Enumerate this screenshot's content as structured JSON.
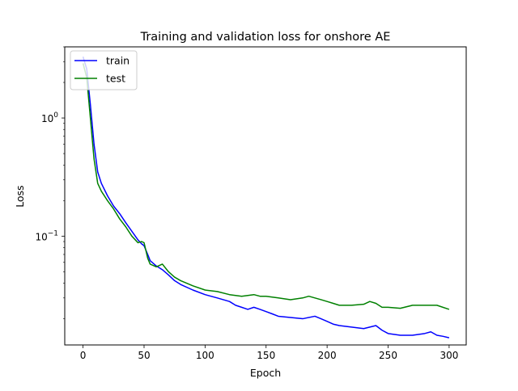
{
  "chart_data": {
    "type": "line",
    "title": "Training and validation loss for onshore AE",
    "xlabel": "Epoch",
    "ylabel": "Loss",
    "xlim": [
      -15,
      314
    ],
    "ylim": [
      0.012,
      4.0
    ],
    "yscale": "log",
    "grid": false,
    "legend_position": "top-left",
    "x_ticks": [
      0,
      50,
      100,
      150,
      200,
      250,
      300
    ],
    "x_tick_labels": [
      "0",
      "50",
      "100",
      "150",
      "200",
      "250",
      "300"
    ],
    "y_ticks": [
      1,
      0.1
    ],
    "y_tick_labels": [
      "10^0",
      "10^-1"
    ],
    "series": [
      {
        "name": "train",
        "color": "#0000ff",
        "points": [
          [
            0,
            3.3
          ],
          [
            3,
            2.6
          ],
          [
            6,
            1.3
          ],
          [
            9,
            0.6
          ],
          [
            12,
            0.35
          ],
          [
            15,
            0.28
          ],
          [
            20,
            0.22
          ],
          [
            25,
            0.18
          ],
          [
            30,
            0.155
          ],
          [
            35,
            0.13
          ],
          [
            40,
            0.11
          ],
          [
            45,
            0.093
          ],
          [
            48,
            0.086
          ],
          [
            50,
            0.083
          ],
          [
            53,
            0.07
          ],
          [
            55,
            0.062
          ],
          [
            60,
            0.056
          ],
          [
            65,
            0.052
          ],
          [
            70,
            0.047
          ],
          [
            75,
            0.042
          ],
          [
            80,
            0.039
          ],
          [
            90,
            0.035
          ],
          [
            100,
            0.032
          ],
          [
            110,
            0.03
          ],
          [
            120,
            0.028
          ],
          [
            125,
            0.026
          ],
          [
            130,
            0.025
          ],
          [
            135,
            0.024
          ],
          [
            140,
            0.025
          ],
          [
            145,
            0.024
          ],
          [
            150,
            0.023
          ],
          [
            155,
            0.022
          ],
          [
            160,
            0.021
          ],
          [
            170,
            0.0205
          ],
          [
            180,
            0.02
          ],
          [
            190,
            0.021
          ],
          [
            195,
            0.02
          ],
          [
            200,
            0.019
          ],
          [
            205,
            0.018
          ],
          [
            210,
            0.0175
          ],
          [
            220,
            0.017
          ],
          [
            230,
            0.0165
          ],
          [
            235,
            0.017
          ],
          [
            240,
            0.0175
          ],
          [
            245,
            0.016
          ],
          [
            250,
            0.015
          ],
          [
            260,
            0.0145
          ],
          [
            270,
            0.0145
          ],
          [
            280,
            0.015
          ],
          [
            285,
            0.0155
          ],
          [
            290,
            0.0145
          ],
          [
            295,
            0.0142
          ],
          [
            300,
            0.0138
          ]
        ]
      },
      {
        "name": "test",
        "color": "#008000",
        "points": [
          [
            0,
            2.9
          ],
          [
            3,
            2.2
          ],
          [
            6,
            1.0
          ],
          [
            9,
            0.45
          ],
          [
            12,
            0.28
          ],
          [
            15,
            0.24
          ],
          [
            20,
            0.2
          ],
          [
            25,
            0.17
          ],
          [
            30,
            0.14
          ],
          [
            35,
            0.12
          ],
          [
            40,
            0.1
          ],
          [
            45,
            0.088
          ],
          [
            48,
            0.09
          ],
          [
            50,
            0.088
          ],
          [
            53,
            0.065
          ],
          [
            55,
            0.058
          ],
          [
            60,
            0.055
          ],
          [
            65,
            0.058
          ],
          [
            70,
            0.05
          ],
          [
            75,
            0.045
          ],
          [
            80,
            0.042
          ],
          [
            90,
            0.038
          ],
          [
            100,
            0.035
          ],
          [
            110,
            0.034
          ],
          [
            120,
            0.032
          ],
          [
            130,
            0.031
          ],
          [
            140,
            0.032
          ],
          [
            145,
            0.031
          ],
          [
            150,
            0.031
          ],
          [
            160,
            0.03
          ],
          [
            170,
            0.029
          ],
          [
            180,
            0.03
          ],
          [
            185,
            0.031
          ],
          [
            190,
            0.03
          ],
          [
            195,
            0.029
          ],
          [
            200,
            0.028
          ],
          [
            205,
            0.027
          ],
          [
            210,
            0.026
          ],
          [
            220,
            0.026
          ],
          [
            230,
            0.0265
          ],
          [
            235,
            0.028
          ],
          [
            240,
            0.027
          ],
          [
            245,
            0.025
          ],
          [
            250,
            0.025
          ],
          [
            260,
            0.0245
          ],
          [
            270,
            0.026
          ],
          [
            280,
            0.026
          ],
          [
            290,
            0.026
          ],
          [
            300,
            0.024
          ]
        ]
      }
    ]
  }
}
